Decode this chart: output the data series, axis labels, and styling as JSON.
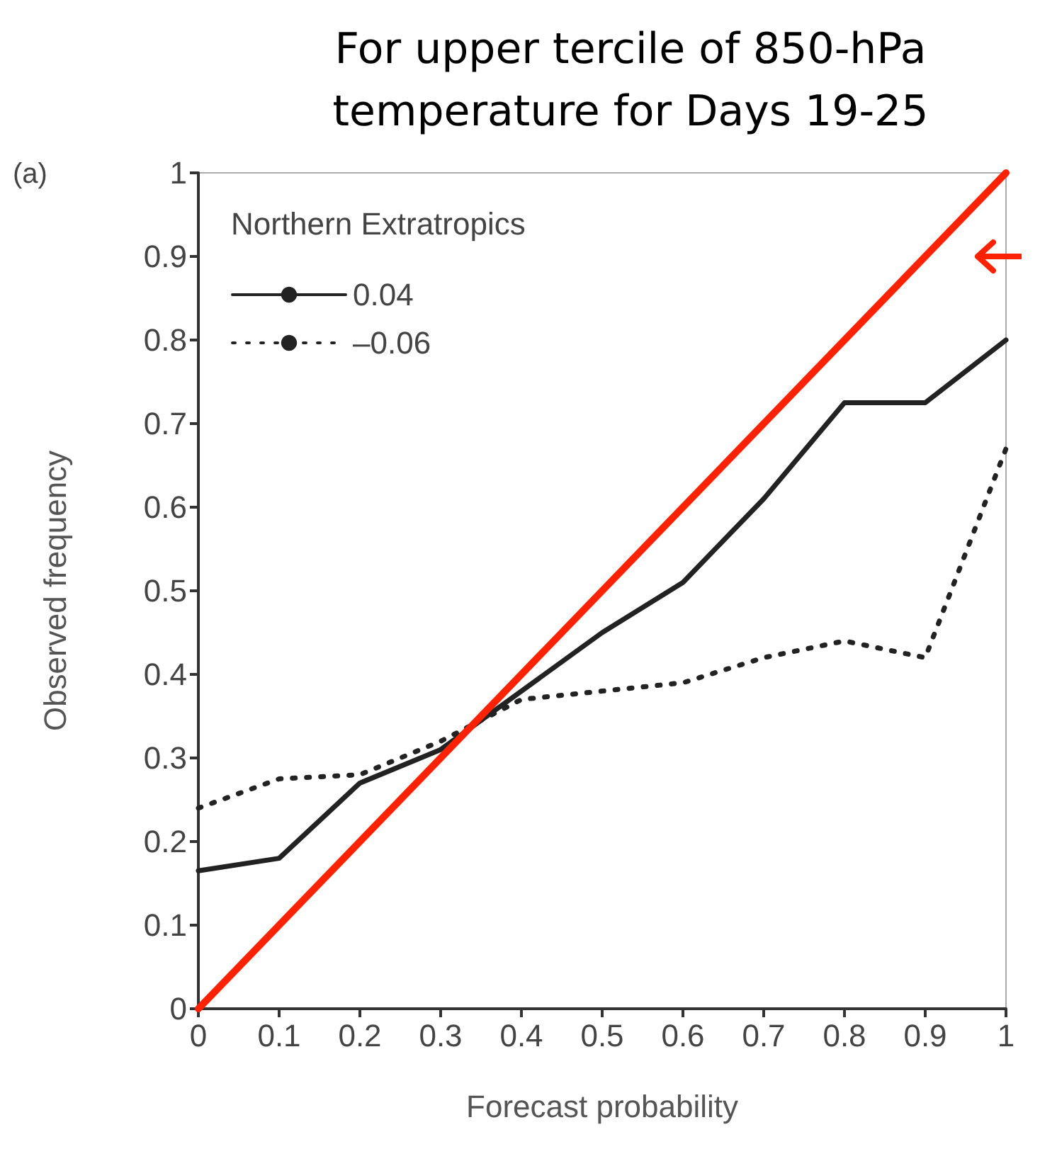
{
  "chart_data": {
    "type": "line",
    "title": "For upper tercile of 850-hPa\ntemperature for Days 19-25",
    "xlabel": "Forecast probability",
    "ylabel": "Observed frequency",
    "legend_title": "Northern Extratropics",
    "annotations": [
      "(a)"
    ],
    "x": [
      0,
      0.1,
      0.2,
      0.3,
      0.4,
      0.5,
      0.6,
      0.7,
      0.8,
      0.9,
      1
    ],
    "series": [
      {
        "name": "0.04",
        "color": "#222222",
        "line_style": "solid",
        "values": [
          0.165,
          0.18,
          0.27,
          0.31,
          0.38,
          0.45,
          0.51,
          0.61,
          0.725,
          0.725,
          0.8
        ]
      },
      {
        "name": "–0.06",
        "color": "#222222",
        "line_style": "dotted",
        "values": [
          0.24,
          0.275,
          0.28,
          0.32,
          0.37,
          0.38,
          0.39,
          0.42,
          0.44,
          0.42,
          0.67
        ]
      },
      {
        "color": "#ff2200",
        "line_style": "solid",
        "x": [
          0,
          1
        ],
        "values": [
          0,
          1
        ]
      }
    ],
    "xlim": [
      0,
      1
    ],
    "xticks": [
      0,
      0.1,
      0.2,
      0.3,
      0.4,
      0.5,
      0.6,
      0.7,
      0.8,
      0.9,
      1
    ],
    "ylim": [
      0,
      1
    ],
    "yticks": [
      0,
      0.1,
      0.2,
      0.3,
      0.4,
      0.5,
      0.6,
      0.7,
      0.8,
      0.9,
      1
    ],
    "grid": false,
    "legend": "top left",
    "marker": "none"
  }
}
